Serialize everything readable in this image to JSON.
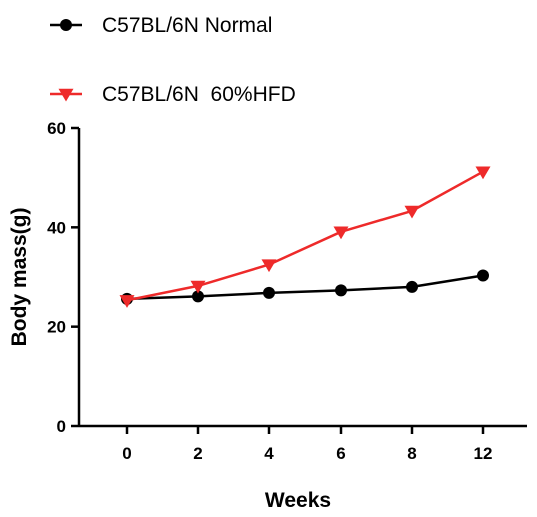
{
  "chart_data": {
    "type": "line",
    "categories": [
      "0",
      "2",
      "4",
      "6",
      "8",
      "12"
    ],
    "series": [
      {
        "name": "C57BL/6N Normal",
        "values": [
          25.6,
          26.1,
          26.8,
          27.3,
          28.0,
          30.3
        ],
        "color": "#000000",
        "marker": "circle"
      },
      {
        "name": "C57BL/6N  60%HFD",
        "values": [
          25.3,
          28.2,
          32.5,
          39.1,
          43.3,
          51.2
        ],
        "color": "#ee2a2a",
        "marker": "triangle-down"
      }
    ],
    "xlabel": "Weeks",
    "ylabel": "Body mass(g)",
    "ylim": [
      0,
      60
    ],
    "yticks": [
      0,
      20,
      40,
      60
    ],
    "legend_position": "top-left",
    "grid": false
  }
}
